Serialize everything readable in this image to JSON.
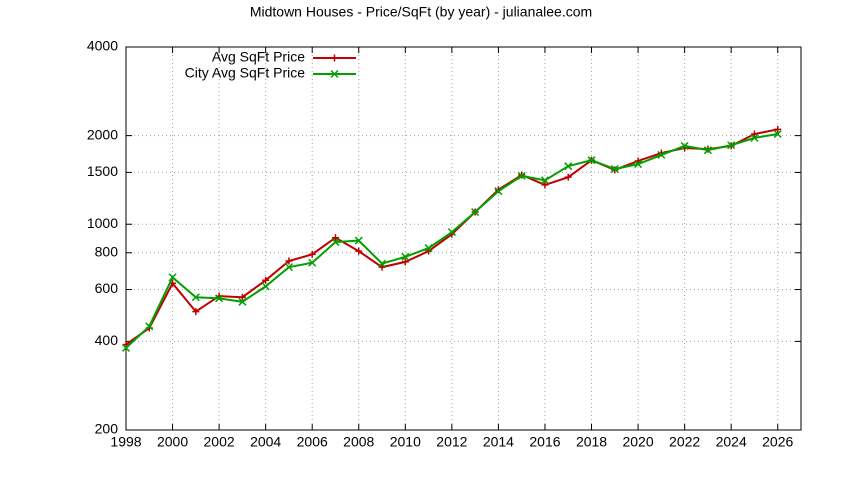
{
  "chart_data": {
    "type": "line",
    "title": "Midtown Houses - Price/SqFt (by year) - julianalee.com",
    "x": [
      1998,
      1999,
      2000,
      2001,
      2002,
      2003,
      2004,
      2005,
      2006,
      2007,
      2008,
      2009,
      2010,
      2011,
      2012,
      2013,
      2014,
      2015,
      2016,
      2017,
      2018,
      2019,
      2020,
      2021,
      2022,
      2023,
      2024,
      2025,
      2026
    ],
    "series": [
      {
        "name": "Avg SqFt Price",
        "color": "#c00000",
        "marker": "plus",
        "values": [
          390,
          444,
          630,
          505,
          570,
          565,
          645,
          750,
          790,
          900,
          810,
          715,
          745,
          810,
          925,
          1100,
          1310,
          1470,
          1360,
          1445,
          1650,
          1530,
          1640,
          1745,
          1815,
          1800,
          1845,
          2025,
          2100
        ]
      },
      {
        "name": "City Avg SqFt Price",
        "color": "#00a000",
        "marker": "cross",
        "values": [
          380,
          450,
          660,
          565,
          560,
          545,
          615,
          715,
          740,
          870,
          880,
          735,
          775,
          830,
          940,
          1100,
          1295,
          1460,
          1410,
          1575,
          1650,
          1540,
          1600,
          1720,
          1845,
          1785,
          1855,
          1965,
          2025
        ]
      }
    ],
    "xlim": [
      1998,
      2027
    ],
    "xticks": [
      1998,
      2000,
      2002,
      2004,
      2006,
      2008,
      2010,
      2012,
      2014,
      2016,
      2018,
      2020,
      2022,
      2024,
      2026
    ],
    "ylim": [
      200,
      4000
    ],
    "yticks": [
      200,
      400,
      600,
      800,
      1000,
      1500,
      2000,
      4000
    ],
    "log_y": true,
    "grid": true,
    "legend": "top-left"
  }
}
